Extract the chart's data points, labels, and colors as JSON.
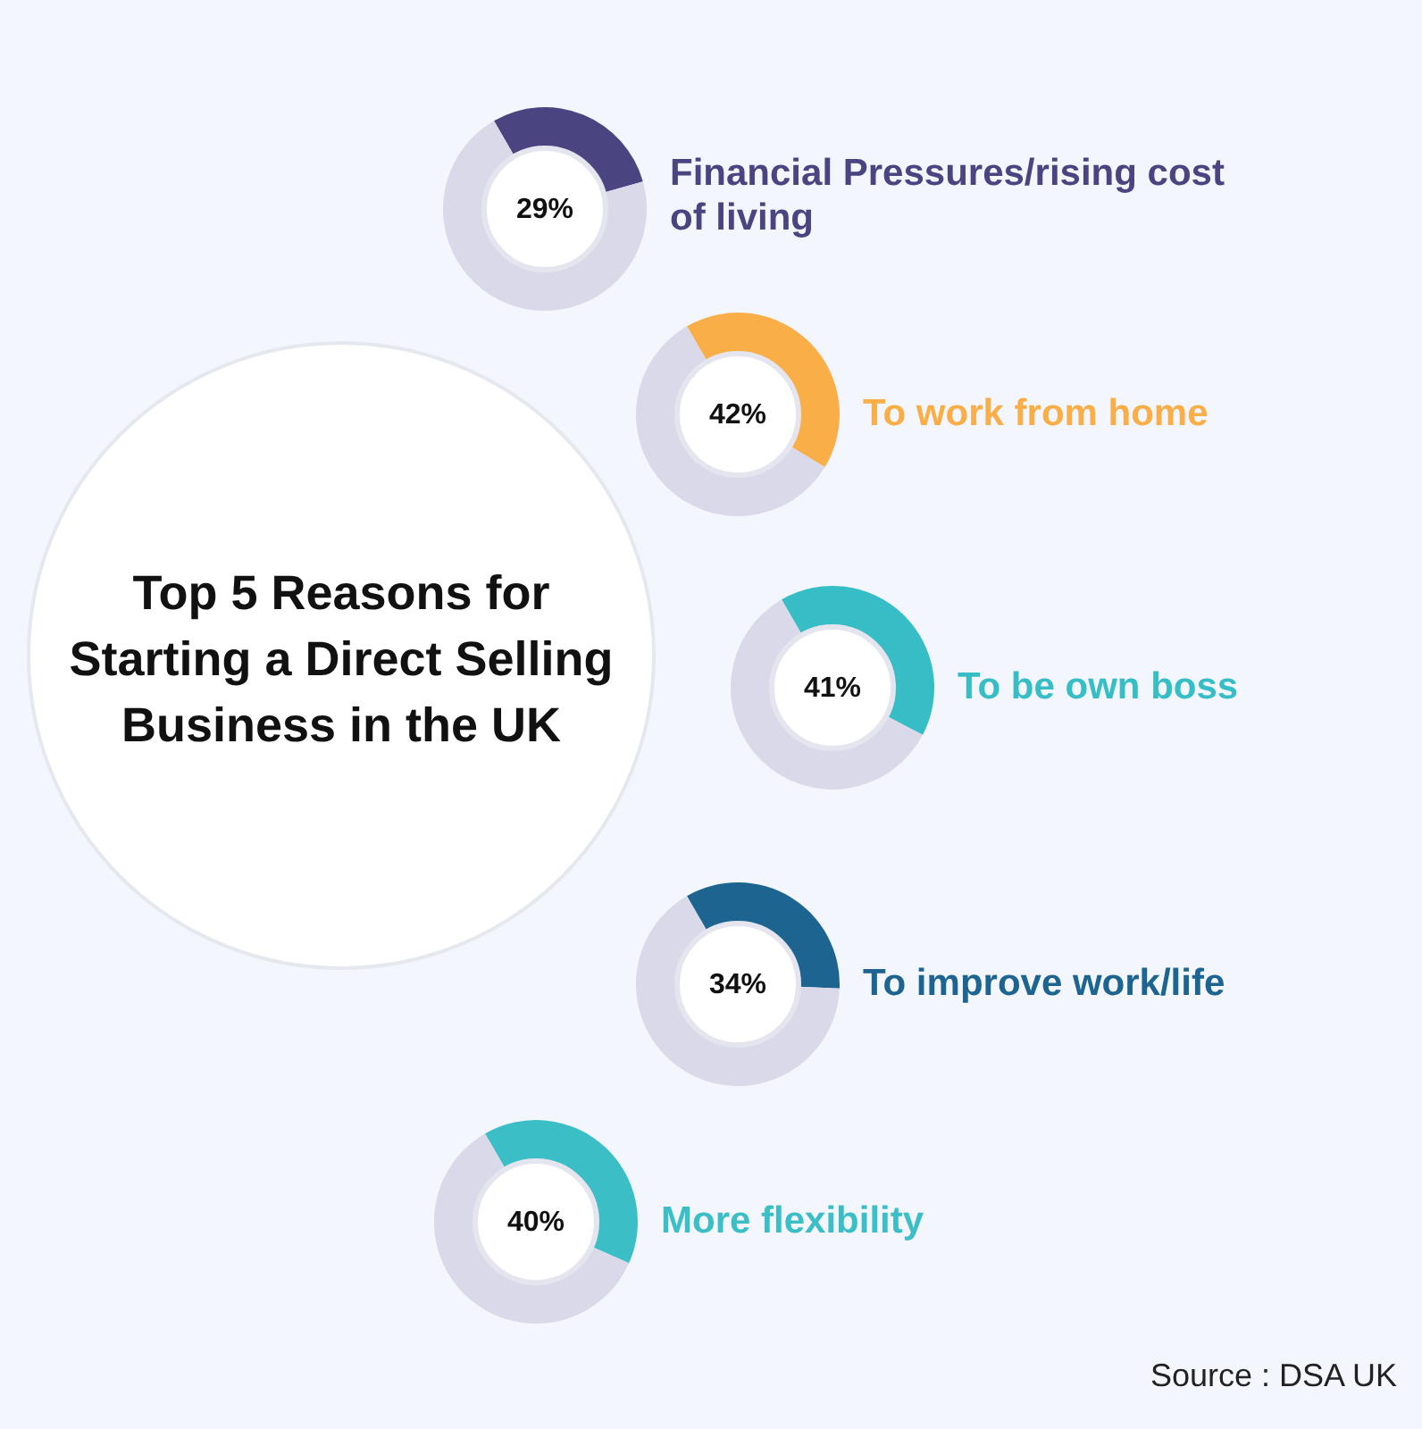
{
  "chart_data": [
    {
      "type": "other",
      "title": "Top 5 Reasons for Starting a Direct Selling Business in the UK",
      "annotations": [
        "Source : DSA UK"
      ]
    },
    {
      "type": "donut",
      "categories": [
        "Financial Pressures/rising cost of living",
        null
      ],
      "values": [
        29,
        71
      ],
      "colors": [
        "#4a4580",
        "#d9d9ea"
      ],
      "annotations": [
        "29%"
      ]
    },
    {
      "type": "donut",
      "categories": [
        "To work from home",
        null
      ],
      "values": [
        42,
        58
      ],
      "colors": [
        "#f9ae47",
        "#d9d9ea"
      ],
      "annotations": [
        "42%"
      ]
    },
    {
      "type": "donut",
      "categories": [
        "To be own boss",
        null
      ],
      "values": [
        41,
        59
      ],
      "colors": [
        "#36bdc6",
        "#d9d9ea"
      ],
      "annotations": [
        "41%"
      ]
    },
    {
      "type": "donut",
      "categories": [
        "To improve work/life",
        null
      ],
      "values": [
        34,
        66
      ],
      "colors": [
        "#1d6590",
        "#d9d9ea"
      ],
      "annotations": [
        "34%"
      ]
    },
    {
      "type": "donut",
      "categories": [
        "More flexibility",
        null
      ],
      "values": [
        40,
        60
      ],
      "colors": [
        "#3bbec6",
        "#d9d9ea"
      ],
      "annotations": [
        "40%"
      ]
    }
  ]
}
